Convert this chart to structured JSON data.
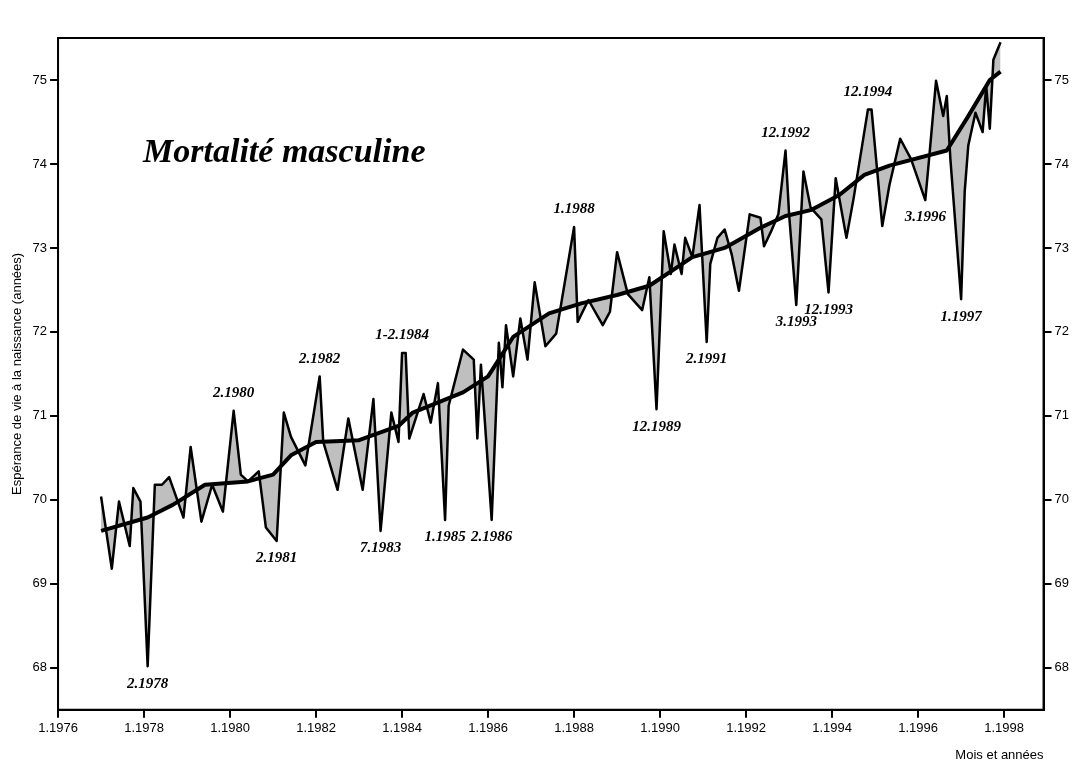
{
  "chart_data": {
    "type": "line",
    "xlabel": "Mois et années",
    "ylabel": "Espérance de vie à la naissance (années)",
    "xlim": [
      "1976-01",
      "1998-12"
    ],
    "xticks": [
      {
        "value": "1976-01",
        "label": "1.1976"
      },
      {
        "value": "1978-01",
        "label": "1.1978"
      },
      {
        "value": "1980-01",
        "label": "1.1980"
      },
      {
        "value": "1982-01",
        "label": "1.1982"
      },
      {
        "value": "1984-01",
        "label": "1.1984"
      },
      {
        "value": "1986-01",
        "label": "1.1986"
      },
      {
        "value": "1988-01",
        "label": "1.1988"
      },
      {
        "value": "1990-01",
        "label": "1.1990"
      },
      {
        "value": "1992-01",
        "label": "1.1992"
      },
      {
        "value": "1994-01",
        "label": "1.1994"
      },
      {
        "value": "1996-01",
        "label": "1.1996"
      },
      {
        "value": "1998-01",
        "label": "1.1998"
      }
    ],
    "ylim": [
      67.5,
      75.5
    ],
    "yticks": [
      68,
      69,
      70,
      71,
      72,
      73,
      74,
      75
    ],
    "y2lim": [
      67.5,
      75.5
    ],
    "y2ticks": [
      68,
      69,
      70,
      71,
      72,
      73,
      74,
      75
    ],
    "marker": "none",
    "series": [
      {
        "color": "#000000",
        "x": [
          "1977-01",
          "1977-04",
          "1977-06",
          "1977-09",
          "1977-10",
          "1977-12",
          "1978-02",
          "1978-04",
          "1978-06",
          "1978-08",
          "1978-12",
          "1979-02",
          "1979-05",
          "1979-08",
          "1979-11",
          "1980-02",
          "1980-04",
          "1980-06",
          "1980-09",
          "1980-11",
          "1981-02",
          "1981-04",
          "1981-06",
          "1981-10",
          "1982-02",
          "1982-03",
          "1982-07",
          "1982-10",
          "1983-02",
          "1983-05",
          "1983-07",
          "1983-10",
          "1983-12",
          "1984-01",
          "1984-02",
          "1984-03",
          "1984-07",
          "1984-09",
          "1984-11",
          "1985-01",
          "1985-02",
          "1985-06",
          "1985-09",
          "1985-10",
          "1985-11",
          "1986-02",
          "1986-04",
          "1986-05",
          "1986-06",
          "1986-08",
          "1986-10",
          "1986-12",
          "1987-02",
          "1987-05",
          "1987-08",
          "1988-01",
          "1988-02",
          "1988-05",
          "1988-09",
          "1988-11",
          "1989-01",
          "1989-04",
          "1989-08",
          "1989-10",
          "1989-12",
          "1990-02",
          "1990-04",
          "1990-05",
          "1990-07",
          "1990-08",
          "1990-10",
          "1990-12",
          "1991-02",
          "1991-03",
          "1991-05",
          "1991-07",
          "1991-09",
          "1991-11",
          "1992-02",
          "1992-05",
          "1992-06",
          "1992-08",
          "1992-10",
          "1992-12",
          "1993-01",
          "1993-03",
          "1993-05",
          "1993-07",
          "1993-10",
          "1993-12",
          "1994-02",
          "1994-05",
          "1994-07",
          "1994-11",
          "1994-12",
          "1995-03",
          "1995-05",
          "1995-08",
          "1995-11",
          "1996-03",
          "1996-04",
          "1996-06",
          "1996-08",
          "1996-09",
          "1996-10",
          "1997-01",
          "1997-02",
          "1997-03",
          "1997-05",
          "1997-07",
          "1997-08",
          "1997-09",
          "1997-10",
          "1997-12"
        ],
        "values": [
          70.04,
          69.18,
          69.98,
          69.45,
          70.14,
          69.98,
          68.02,
          70.18,
          70.18,
          70.27,
          69.79,
          70.63,
          69.74,
          70.18,
          69.86,
          71.06,
          70.3,
          70.22,
          70.34,
          69.67,
          69.51,
          71.04,
          70.75,
          70.41,
          71.47,
          70.69,
          70.12,
          70.97,
          70.12,
          71.2,
          69.63,
          71.04,
          70.69,
          71.75,
          71.75,
          70.73,
          71.26,
          70.92,
          71.39,
          69.76,
          71.12,
          71.79,
          71.67,
          70.73,
          71.61,
          69.76,
          71.87,
          71.34,
          72.08,
          71.47,
          72.16,
          71.67,
          72.59,
          71.83,
          71.98,
          73.25,
          72.12,
          72.38,
          72.08,
          72.24,
          72.95,
          72.45,
          72.26,
          72.65,
          71.08,
          73.2,
          72.69,
          73.04,
          72.69,
          73.12,
          72.89,
          73.51,
          71.88,
          72.81,
          73.12,
          73.22,
          72.92,
          72.49,
          73.4,
          73.36,
          73.02,
          73.2,
          73.4,
          74.16,
          73.4,
          72.32,
          73.91,
          73.48,
          73.34,
          72.47,
          73.83,
          73.12,
          73.59,
          74.65,
          74.65,
          73.26,
          73.75,
          74.3,
          74.06,
          73.57,
          74.03,
          74.99,
          74.57,
          74.81,
          74.06,
          72.39,
          73.67,
          74.22,
          74.61,
          74.38,
          74.93,
          74.42,
          75.24,
          75.45
        ]
      },
      {
        "color": "#000000",
        "x": [
          "1977-01",
          "1978-02",
          "1978-09",
          "1979-06",
          "1980-06",
          "1981-01",
          "1981-06",
          "1982-01",
          "1983-01",
          "1983-12",
          "1984-04",
          "1985-06",
          "1986-01",
          "1986-08",
          "1987-06",
          "1988-03",
          "1989-01",
          "1989-10",
          "1990-10",
          "1991-07",
          "1992-05",
          "1992-12",
          "1993-07",
          "1994-03",
          "1994-10",
          "1995-05",
          "1996-09",
          "1997-03",
          "1997-09",
          "1997-12"
        ],
        "values": [
          69.63,
          69.79,
          69.94,
          70.18,
          70.22,
          70.3,
          70.53,
          70.69,
          70.71,
          70.88,
          71.04,
          71.28,
          71.47,
          71.94,
          72.22,
          72.34,
          72.44,
          72.55,
          72.89,
          73.0,
          73.24,
          73.38,
          73.45,
          73.63,
          73.87,
          73.98,
          74.16,
          74.57,
          75.0,
          75.1
        ]
      }
    ],
    "annotations": [
      "Mortalité masculine",
      {
        "text": "2.1978",
        "x": "1978-02",
        "y": 68.02
      },
      {
        "text": "2.1980",
        "x": "1980-02",
        "y": 71.06
      },
      {
        "text": "2.1981",
        "x": "1981-02",
        "y": 69.51
      },
      {
        "text": "2.1982",
        "x": "1982-02",
        "y": 71.47
      },
      {
        "text": "7.1983",
        "x": "1983-07",
        "y": 69.63
      },
      {
        "text": "1-2.1984",
        "x": "1984-01",
        "y": 71.75
      },
      {
        "text": "1.1985",
        "x": "1985-01",
        "y": 69.76
      },
      {
        "text": "2.1986",
        "x": "1986-02",
        "y": 69.76
      },
      {
        "text": "1.1988",
        "x": "1988-01",
        "y": 73.25
      },
      {
        "text": "12.1989",
        "x": "1989-12",
        "y": 71.08
      },
      {
        "text": "2.1991",
        "x": "1991-02",
        "y": 71.88
      },
      {
        "text": "12.1992",
        "x": "1992-12",
        "y": 74.16
      },
      {
        "text": "3.1993",
        "x": "1993-03",
        "y": 72.32
      },
      {
        "text": "12.1993",
        "x": "1993-12",
        "y": 72.47
      },
      {
        "text": "12.1994",
        "x": "1994-11",
        "y": 74.65
      },
      {
        "text": "3.1996",
        "x": "1996-03",
        "y": 73.57
      },
      {
        "text": "1.1997",
        "x": "1997-01",
        "y": 72.39
      }
    ]
  }
}
